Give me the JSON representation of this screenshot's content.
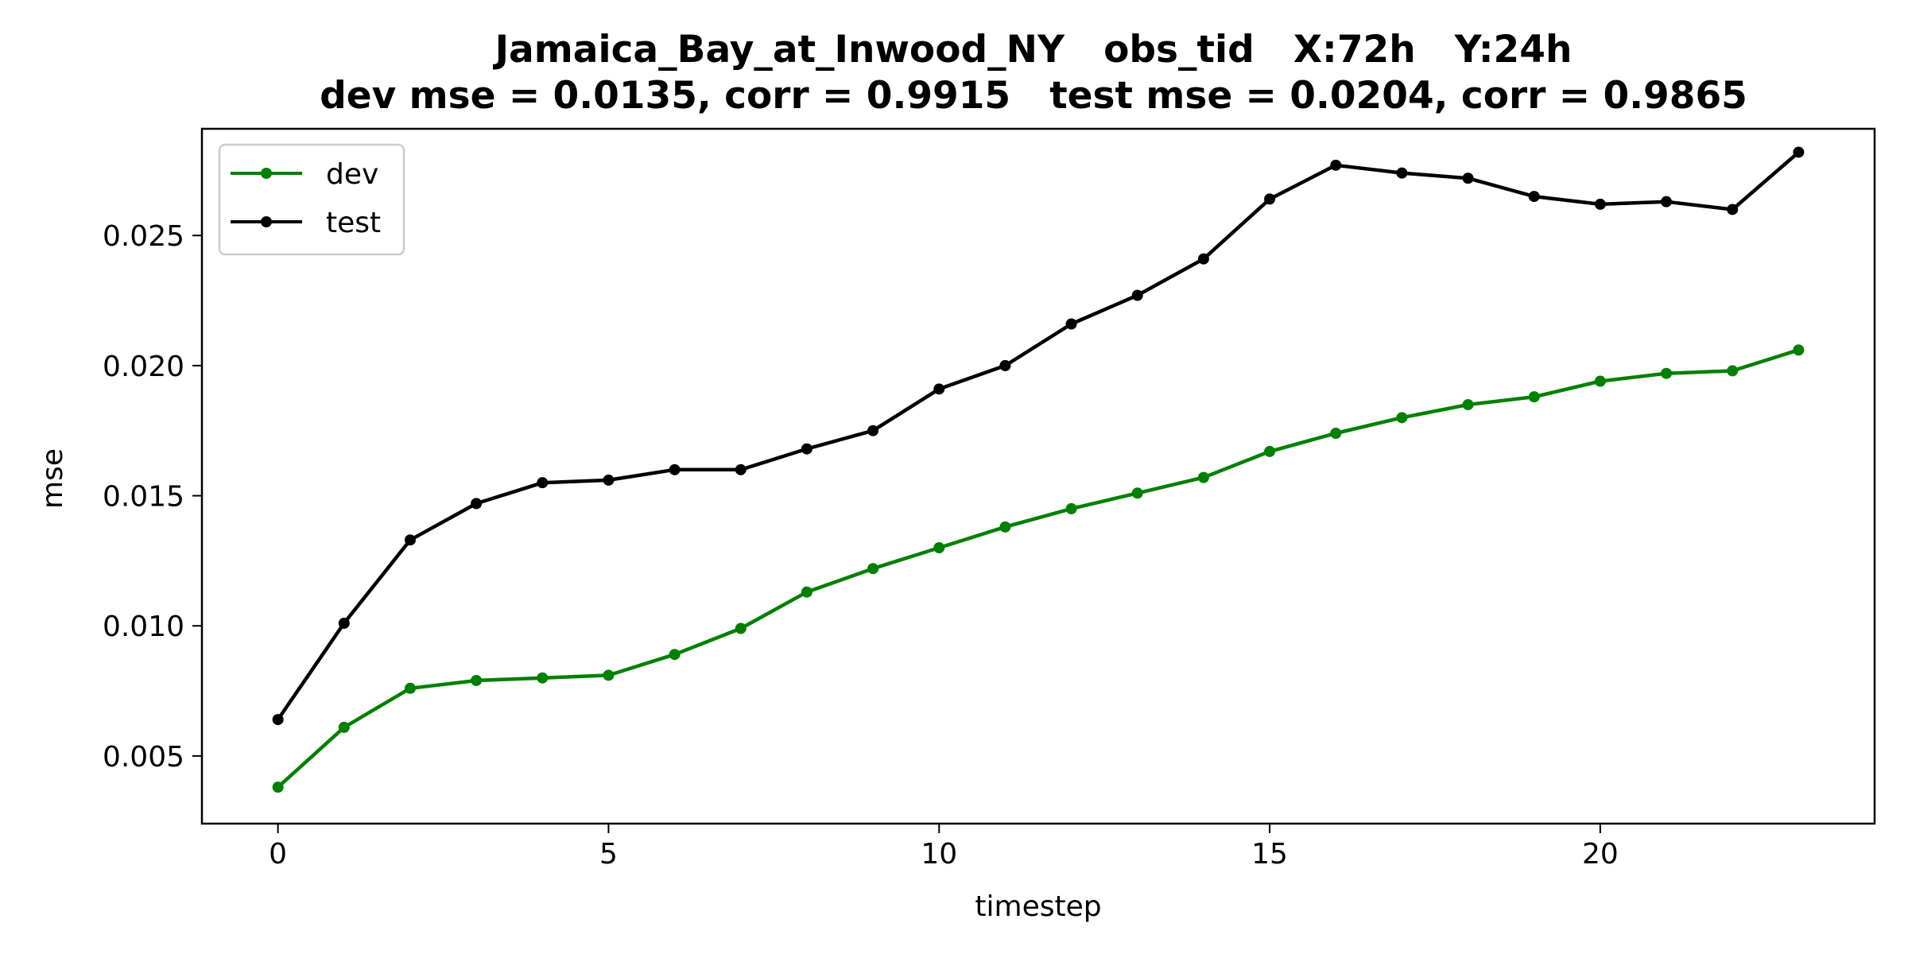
{
  "chart_data": {
    "type": "line",
    "title": "Jamaica_Bay_at_Inwood_NY   obs_tid   X:72h   Y:24h",
    "subtitle": "dev mse = 0.0135, corr = 0.9915   test mse = 0.0204, corr = 0.9865",
    "xlabel": "timestep",
    "ylabel": "mse",
    "xlim": [
      -1.15,
      24.15
    ],
    "ylim": [
      0.0024,
      0.0291
    ],
    "xticks": [
      0,
      5,
      10,
      15,
      20
    ],
    "yticks": [
      0.005,
      0.01,
      0.015,
      0.02,
      0.025
    ],
    "ytick_labels": [
      "0.005",
      "0.010",
      "0.015",
      "0.020",
      "0.025"
    ],
    "grid": false,
    "legend_position": "upper-left",
    "x": [
      0,
      1,
      2,
      3,
      4,
      5,
      6,
      7,
      8,
      9,
      10,
      11,
      12,
      13,
      14,
      15,
      16,
      17,
      18,
      19,
      20,
      21,
      22,
      23
    ],
    "series": [
      {
        "name": "dev",
        "color": "#008000",
        "values": [
          0.0038,
          0.0061,
          0.0076,
          0.0079,
          0.008,
          0.0081,
          0.0089,
          0.0099,
          0.0113,
          0.0122,
          0.013,
          0.0138,
          0.0145,
          0.0151,
          0.0157,
          0.0167,
          0.0174,
          0.018,
          0.0185,
          0.0188,
          0.0194,
          0.0197,
          0.0198,
          0.0206
        ]
      },
      {
        "name": "test",
        "color": "#000000",
        "values": [
          0.0064,
          0.0101,
          0.0133,
          0.0147,
          0.0155,
          0.0156,
          0.016,
          0.016,
          0.0168,
          0.0175,
          0.0191,
          0.02,
          0.0216,
          0.0227,
          0.0241,
          0.0264,
          0.0277,
          0.0274,
          0.0272,
          0.0265,
          0.0262,
          0.0263,
          0.026,
          0.0282
        ]
      }
    ]
  }
}
